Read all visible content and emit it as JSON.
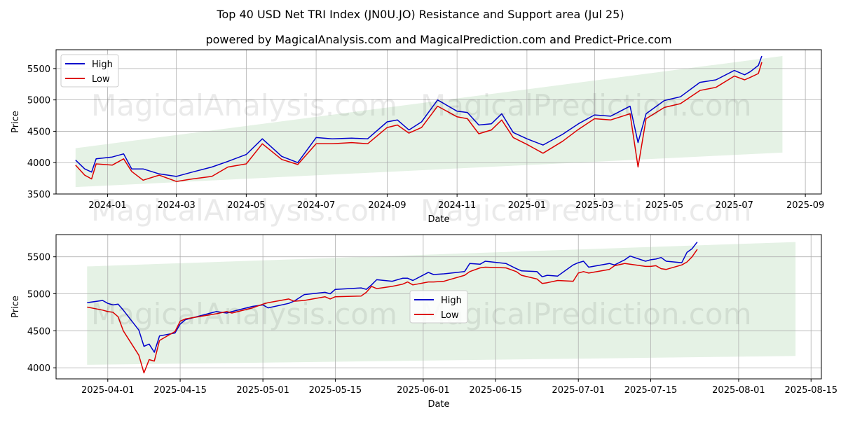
{
  "title": "Top 40 USD Net TRI Index (JN0U.JO) Resistance and Support area (Jul 25)",
  "subtitle": "powered by MagicalAnalysis.com and MagicalPrediction.com and Predict-Price.com",
  "watermarks": [
    "MagicalAnalysis.com",
    "MagicalPrediction.com"
  ],
  "colors": {
    "high": "#0000cc",
    "low": "#dd0000",
    "band": "#e5f2e5",
    "grid": "#b0b0b0"
  },
  "chart_data": [
    {
      "type": "line",
      "xlabel": "Date",
      "ylabel": "Price",
      "xlim": [
        "2023-11-17",
        "2025-09-15"
      ],
      "ylim": [
        3500,
        5800
      ],
      "grid": true,
      "legend": "top-left",
      "xticks": [
        {
          "date": "2024-01-01",
          "label": "2024-01"
        },
        {
          "date": "2024-03-01",
          "label": "2024-03"
        },
        {
          "date": "2024-05-01",
          "label": "2024-05"
        },
        {
          "date": "2024-07-01",
          "label": "2024-07"
        },
        {
          "date": "2024-09-01",
          "label": "2024-09"
        },
        {
          "date": "2024-11-01",
          "label": "2024-11"
        },
        {
          "date": "2025-01-01",
          "label": "2025-01"
        },
        {
          "date": "2025-03-01",
          "label": "2025-03"
        },
        {
          "date": "2025-05-01",
          "label": "2025-05"
        },
        {
          "date": "2025-07-01",
          "label": "2025-07"
        },
        {
          "date": "2025-09-01",
          "label": "2025-09"
        }
      ],
      "yticks": [
        3500,
        4000,
        4500,
        5000,
        5500
      ],
      "band": {
        "x": [
          "2023-12-04",
          "2025-08-12"
        ],
        "upper": [
          4230,
          5700
        ],
        "lower": [
          3610,
          4160
        ]
      },
      "series": [
        {
          "name": "High",
          "x": [
            "2023-12-04",
            "2023-12-12",
            "2023-12-18",
            "2023-12-22",
            "2024-01-05",
            "2024-01-15",
            "2024-01-22",
            "2024-02-01",
            "2024-02-15",
            "2024-03-01",
            "2024-03-15",
            "2024-04-01",
            "2024-04-15",
            "2024-05-01",
            "2024-05-15",
            "2024-06-01",
            "2024-06-15",
            "2024-07-01",
            "2024-07-15",
            "2024-08-01",
            "2024-08-15",
            "2024-09-01",
            "2024-09-10",
            "2024-09-20",
            "2024-10-01",
            "2024-10-15",
            "2024-11-01",
            "2024-11-10",
            "2024-11-20",
            "2024-12-01",
            "2024-12-10",
            "2024-12-20",
            "2025-01-01",
            "2025-01-15",
            "2025-02-01",
            "2025-02-15",
            "2025-03-01",
            "2025-03-15",
            "2025-04-01",
            "2025-04-08",
            "2025-04-15",
            "2025-05-01",
            "2025-05-15",
            "2025-06-01",
            "2025-06-15",
            "2025-07-01",
            "2025-07-10",
            "2025-07-15",
            "2025-07-22",
            "2025-07-25"
          ],
          "values": [
            4040,
            3900,
            3850,
            4060,
            4090,
            4140,
            3900,
            3900,
            3820,
            3780,
            3850,
            3930,
            4020,
            4130,
            4380,
            4100,
            4000,
            4400,
            4380,
            4390,
            4380,
            4650,
            4680,
            4520,
            4650,
            5000,
            4820,
            4800,
            4600,
            4620,
            4780,
            4480,
            4380,
            4280,
            4450,
            4620,
            4760,
            4740,
            4900,
            4320,
            4780,
            4990,
            5050,
            5280,
            5320,
            5470,
            5400,
            5450,
            5550,
            5700
          ]
        },
        {
          "name": "Low",
          "x": [
            "2023-12-04",
            "2023-12-12",
            "2023-12-18",
            "2023-12-22",
            "2024-01-05",
            "2024-01-15",
            "2024-01-22",
            "2024-02-01",
            "2024-02-15",
            "2024-03-01",
            "2024-03-15",
            "2024-04-01",
            "2024-04-15",
            "2024-05-01",
            "2024-05-15",
            "2024-06-01",
            "2024-06-15",
            "2024-07-01",
            "2024-07-15",
            "2024-08-01",
            "2024-08-15",
            "2024-09-01",
            "2024-09-10",
            "2024-09-20",
            "2024-10-01",
            "2024-10-15",
            "2024-11-01",
            "2024-11-10",
            "2024-11-20",
            "2024-12-01",
            "2024-12-10",
            "2024-12-20",
            "2025-01-01",
            "2025-01-15",
            "2025-02-01",
            "2025-02-15",
            "2025-03-01",
            "2025-03-15",
            "2025-04-01",
            "2025-04-08",
            "2025-04-15",
            "2025-05-01",
            "2025-05-15",
            "2025-06-01",
            "2025-06-15",
            "2025-07-01",
            "2025-07-10",
            "2025-07-15",
            "2025-07-22",
            "2025-07-25"
          ],
          "values": [
            3960,
            3800,
            3740,
            3980,
            3960,
            4060,
            3860,
            3720,
            3800,
            3700,
            3740,
            3780,
            3930,
            3980,
            4300,
            4050,
            3970,
            4300,
            4300,
            4320,
            4300,
            4560,
            4600,
            4470,
            4560,
            4900,
            4730,
            4700,
            4460,
            4520,
            4680,
            4400,
            4290,
            4150,
            4340,
            4530,
            4700,
            4680,
            4780,
            3930,
            4700,
            4880,
            4940,
            5150,
            5200,
            5380,
            5320,
            5360,
            5420,
            5600
          ]
        }
      ]
    },
    {
      "type": "line",
      "xlabel": "Date",
      "ylabel": "Price",
      "xlim": [
        "2025-03-22",
        "2025-08-17"
      ],
      "ylim": [
        3850,
        5800
      ],
      "grid": true,
      "legend": "center",
      "xticks": [
        {
          "date": "2025-04-01",
          "label": "2025-04-01"
        },
        {
          "date": "2025-04-15",
          "label": "2025-04-15"
        },
        {
          "date": "2025-05-01",
          "label": "2025-05-01"
        },
        {
          "date": "2025-05-15",
          "label": "2025-05-15"
        },
        {
          "date": "2025-06-01",
          "label": "2025-06-01"
        },
        {
          "date": "2025-06-15",
          "label": "2025-06-15"
        },
        {
          "date": "2025-07-01",
          "label": "2025-07-01"
        },
        {
          "date": "2025-07-15",
          "label": "2025-07-15"
        },
        {
          "date": "2025-08-01",
          "label": "2025-08-01"
        },
        {
          "date": "2025-08-15",
          "label": "2025-08-15"
        }
      ],
      "yticks": [
        4000,
        4500,
        5000,
        5500
      ],
      "band": {
        "x": [
          "2025-03-28",
          "2025-08-12"
        ],
        "upper": [
          5370,
          5700
        ],
        "lower": [
          4040,
          4160
        ]
      },
      "series": [
        {
          "name": "High",
          "x": [
            "2025-03-28",
            "2025-03-31",
            "2025-04-01",
            "2025-04-02",
            "2025-04-03",
            "2025-04-04",
            "2025-04-07",
            "2025-04-08",
            "2025-04-09",
            "2025-04-10",
            "2025-04-11",
            "2025-04-14",
            "2025-04-15",
            "2025-04-16",
            "2025-04-22",
            "2025-04-24",
            "2025-04-25",
            "2025-04-29",
            "2025-05-01",
            "2025-05-02",
            "2025-05-06",
            "2025-05-07",
            "2025-05-09",
            "2025-05-13",
            "2025-05-14",
            "2025-05-15",
            "2025-05-20",
            "2025-05-21",
            "2025-05-22",
            "2025-05-23",
            "2025-05-26",
            "2025-05-28",
            "2025-05-29",
            "2025-05-30",
            "2025-06-02",
            "2025-06-03",
            "2025-06-05",
            "2025-06-09",
            "2025-06-10",
            "2025-06-12",
            "2025-06-13",
            "2025-06-17",
            "2025-06-19",
            "2025-06-20",
            "2025-06-23",
            "2025-06-24",
            "2025-06-25",
            "2025-06-27",
            "2025-06-30",
            "2025-07-01",
            "2025-07-02",
            "2025-07-03",
            "2025-07-07",
            "2025-07-08",
            "2025-07-10",
            "2025-07-11",
            "2025-07-14",
            "2025-07-15",
            "2025-07-16",
            "2025-07-17",
            "2025-07-18",
            "2025-07-21",
            "2025-07-22",
            "2025-07-23",
            "2025-07-24"
          ],
          "values": [
            4880,
            4910,
            4870,
            4850,
            4860,
            4780,
            4510,
            4290,
            4320,
            4210,
            4430,
            4470,
            4590,
            4650,
            4760,
            4740,
            4760,
            4830,
            4850,
            4810,
            4870,
            4900,
            4990,
            5020,
            5000,
            5060,
            5080,
            5060,
            5120,
            5190,
            5170,
            5210,
            5210,
            5180,
            5290,
            5260,
            5270,
            5300,
            5410,
            5400,
            5440,
            5410,
            5340,
            5310,
            5300,
            5230,
            5250,
            5240,
            5390,
            5420,
            5440,
            5360,
            5410,
            5390,
            5460,
            5510,
            5440,
            5460,
            5470,
            5490,
            5440,
            5420,
            5560,
            5610,
            5700
          ]
        },
        {
          "name": "Low",
          "x": [
            "2025-03-28",
            "2025-03-31",
            "2025-04-01",
            "2025-04-02",
            "2025-04-03",
            "2025-04-04",
            "2025-04-07",
            "2025-04-08",
            "2025-04-09",
            "2025-04-10",
            "2025-04-11",
            "2025-04-14",
            "2025-04-15",
            "2025-04-16",
            "2025-04-22",
            "2025-04-24",
            "2025-04-25",
            "2025-04-29",
            "2025-05-01",
            "2025-05-02",
            "2025-05-06",
            "2025-05-07",
            "2025-05-09",
            "2025-05-13",
            "2025-05-14",
            "2025-05-15",
            "2025-05-20",
            "2025-05-21",
            "2025-05-22",
            "2025-05-23",
            "2025-05-26",
            "2025-05-28",
            "2025-05-29",
            "2025-05-30",
            "2025-06-02",
            "2025-06-03",
            "2025-06-05",
            "2025-06-09",
            "2025-06-10",
            "2025-06-12",
            "2025-06-13",
            "2025-06-17",
            "2025-06-19",
            "2025-06-20",
            "2025-06-23",
            "2025-06-24",
            "2025-06-25",
            "2025-06-27",
            "2025-06-30",
            "2025-07-01",
            "2025-07-02",
            "2025-07-03",
            "2025-07-07",
            "2025-07-08",
            "2025-07-10",
            "2025-07-11",
            "2025-07-14",
            "2025-07-15",
            "2025-07-16",
            "2025-07-17",
            "2025-07-18",
            "2025-07-21",
            "2025-07-22",
            "2025-07-23",
            "2025-07-24"
          ],
          "values": [
            4820,
            4780,
            4760,
            4750,
            4690,
            4500,
            4170,
            3930,
            4110,
            4090,
            4370,
            4490,
            4630,
            4660,
            4730,
            4760,
            4740,
            4810,
            4860,
            4880,
            4930,
            4900,
            4910,
            4960,
            4930,
            4960,
            4970,
            5020,
            5100,
            5070,
            5100,
            5130,
            5160,
            5120,
            5160,
            5160,
            5170,
            5250,
            5300,
            5350,
            5360,
            5350,
            5300,
            5250,
            5200,
            5140,
            5150,
            5180,
            5170,
            5280,
            5300,
            5280,
            5330,
            5380,
            5410,
            5400,
            5370,
            5370,
            5380,
            5340,
            5330,
            5390,
            5430,
            5500,
            5600
          ]
        }
      ]
    }
  ]
}
